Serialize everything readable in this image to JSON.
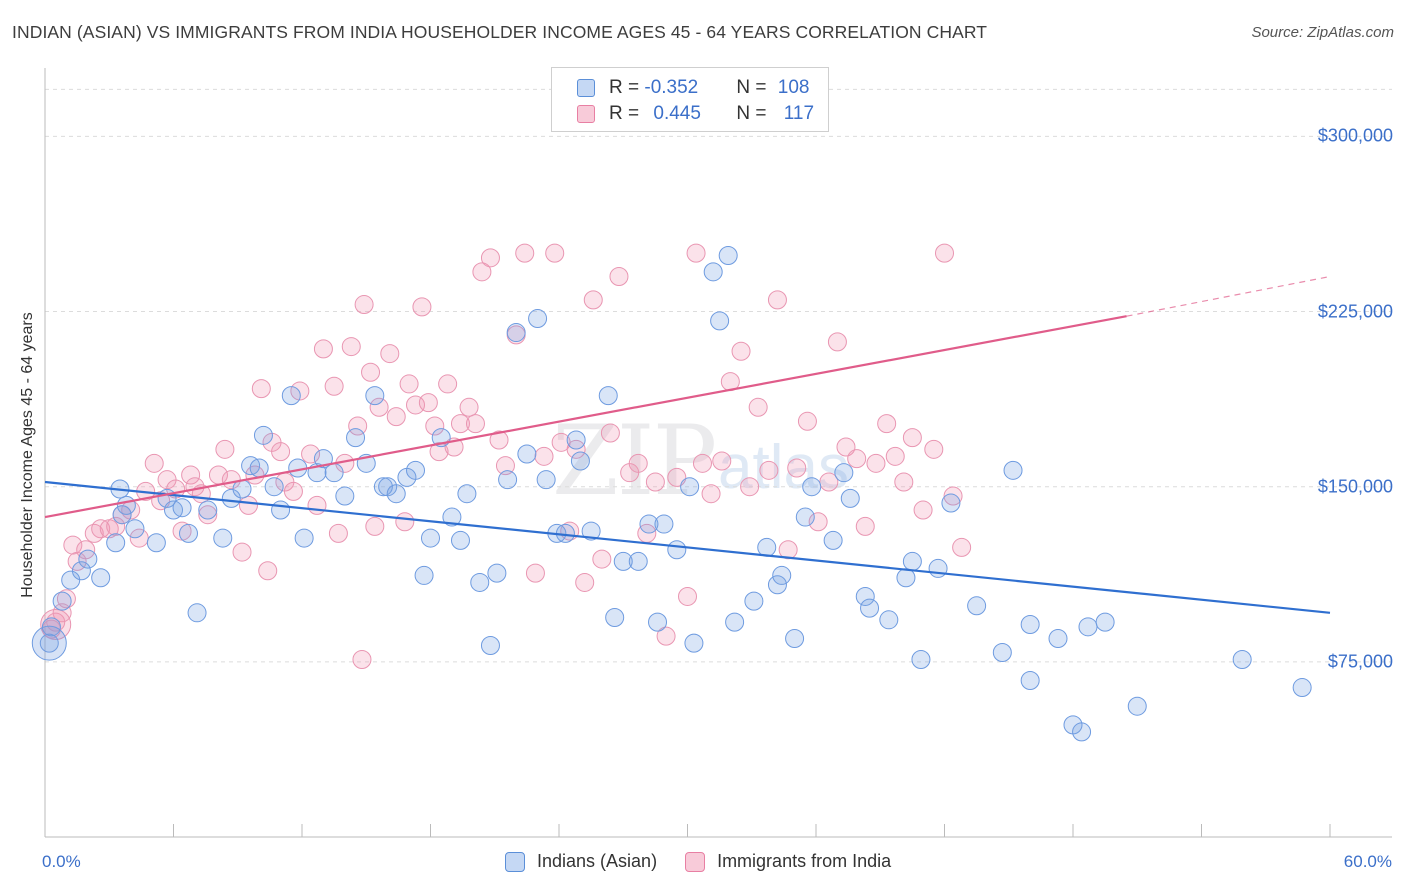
{
  "title": "INDIAN (ASIAN) VS IMMIGRANTS FROM INDIA HOUSEHOLDER INCOME AGES 45 - 64 YEARS CORRELATION CHART",
  "source": "Source: ZipAtlas.com",
  "watermark": {
    "zip": "ZIP",
    "atlas": "atlas"
  },
  "legend_top": {
    "rows": [
      {
        "r_label": "R = ",
        "r_value": "-0.352",
        "n_label": "N = ",
        "n_value": "108",
        "color": "#5b8fd8"
      },
      {
        "r_label": "R = ",
        "r_value": "0.445",
        "n_label": "N = ",
        "n_value": "117",
        "color": "#e87fa3"
      }
    ]
  },
  "legend_bottom": {
    "series1": "Indians (Asian)",
    "series2": "Immigrants from India"
  },
  "chart_data": {
    "type": "scatter",
    "title": "INDIAN (ASIAN) VS IMMIGRANTS FROM INDIA HOUSEHOLDER INCOME AGES 45 - 64 YEARS CORRELATION CHART",
    "xlabel": "",
    "ylabel": "Householder Income Ages 45 - 64 years",
    "xlim": [
      0,
      60
    ],
    "ylim": [
      0,
      325000
    ],
    "x_tick_labels": [
      "0.0%",
      "60.0%"
    ],
    "y_tick_labels": [
      "$75,000",
      "$150,000",
      "$225,000",
      "$300,000"
    ],
    "y_ticks": [
      75000,
      150000,
      225000,
      300000
    ],
    "grid": true,
    "legend_position": "top-center",
    "colors": {
      "blue": "#5b8fd8",
      "pink": "#e87fa3",
      "blue_line": "#2f6fd0",
      "pink_line": "#e05c8a"
    },
    "series": [
      {
        "name": "Indians (Asian)",
        "trend": {
          "x": [
            0,
            60
          ],
          "y": [
            152000,
            96000
          ]
        },
        "points": [
          [
            0.2,
            83000
          ],
          [
            0.3,
            90000
          ],
          [
            0.8,
            101000
          ],
          [
            1.2,
            110000
          ],
          [
            1.7,
            114000
          ],
          [
            2.0,
            119000
          ],
          [
            2.6,
            111000
          ],
          [
            3.3,
            126000
          ],
          [
            3.5,
            149000
          ],
          [
            3.6,
            138000
          ],
          [
            3.8,
            142000
          ],
          [
            4.2,
            132000
          ],
          [
            5.2,
            126000
          ],
          [
            5.7,
            145000
          ],
          [
            6.0,
            140000
          ],
          [
            6.4,
            141000
          ],
          [
            6.7,
            130000
          ],
          [
            7.1,
            96000
          ],
          [
            7.6,
            140000
          ],
          [
            8.3,
            128000
          ],
          [
            8.7,
            145000
          ],
          [
            9.2,
            149000
          ],
          [
            9.6,
            159000
          ],
          [
            10.0,
            158000
          ],
          [
            10.2,
            172000
          ],
          [
            10.7,
            150000
          ],
          [
            11.0,
            140000
          ],
          [
            11.5,
            189000
          ],
          [
            11.8,
            158000
          ],
          [
            12.1,
            128000
          ],
          [
            12.7,
            156000
          ],
          [
            13.0,
            162000
          ],
          [
            13.5,
            156000
          ],
          [
            14.0,
            146000
          ],
          [
            14.5,
            171000
          ],
          [
            15.0,
            160000
          ],
          [
            15.4,
            189000
          ],
          [
            15.8,
            150000
          ],
          [
            16.0,
            150000
          ],
          [
            16.4,
            147000
          ],
          [
            16.9,
            154000
          ],
          [
            17.3,
            157000
          ],
          [
            17.7,
            112000
          ],
          [
            18.0,
            128000
          ],
          [
            18.5,
            171000
          ],
          [
            19.0,
            137000
          ],
          [
            19.4,
            127000
          ],
          [
            19.7,
            147000
          ],
          [
            20.3,
            109000
          ],
          [
            20.8,
            82000
          ],
          [
            21.1,
            113000
          ],
          [
            21.6,
            153000
          ],
          [
            22.0,
            216000
          ],
          [
            22.5,
            164000
          ],
          [
            23.0,
            222000
          ],
          [
            23.4,
            153000
          ],
          [
            23.9,
            130000
          ],
          [
            24.3,
            130000
          ],
          [
            24.8,
            170000
          ],
          [
            25.0,
            161000
          ],
          [
            25.5,
            131000
          ],
          [
            26.3,
            189000
          ],
          [
            26.6,
            94000
          ],
          [
            27.0,
            118000
          ],
          [
            27.7,
            118000
          ],
          [
            28.2,
            134000
          ],
          [
            28.6,
            92000
          ],
          [
            28.9,
            134000
          ],
          [
            29.5,
            123000
          ],
          [
            30.1,
            150000
          ],
          [
            30.3,
            83000
          ],
          [
            31.2,
            242000
          ],
          [
            31.5,
            221000
          ],
          [
            31.9,
            249000
          ],
          [
            32.2,
            92000
          ],
          [
            33.1,
            101000
          ],
          [
            33.7,
            124000
          ],
          [
            34.2,
            108000
          ],
          [
            34.4,
            112000
          ],
          [
            35.0,
            85000
          ],
          [
            35.5,
            137000
          ],
          [
            35.8,
            150000
          ],
          [
            36.8,
            127000
          ],
          [
            37.3,
            156000
          ],
          [
            37.6,
            145000
          ],
          [
            38.3,
            103000
          ],
          [
            38.5,
            98000
          ],
          [
            39.4,
            93000
          ],
          [
            40.2,
            111000
          ],
          [
            40.5,
            118000
          ],
          [
            40.9,
            76000
          ],
          [
            41.7,
            115000
          ],
          [
            42.3,
            143000
          ],
          [
            43.5,
            99000
          ],
          [
            44.7,
            79000
          ],
          [
            45.2,
            157000
          ],
          [
            46.0,
            67000
          ],
          [
            46.0,
            91000
          ],
          [
            47.3,
            85000
          ],
          [
            48.0,
            48000
          ],
          [
            48.4,
            45000
          ],
          [
            48.7,
            90000
          ],
          [
            49.5,
            92000
          ],
          [
            51.0,
            56000
          ],
          [
            55.9,
            76000
          ],
          [
            58.7,
            64000
          ]
        ]
      },
      {
        "name": "Immigrants from India",
        "trend": {
          "x": [
            0,
            50.5
          ],
          "y": [
            137000,
            223000
          ],
          "dash_to": [
            60,
            240000
          ]
        },
        "points": [
          [
            0.3,
            89000
          ],
          [
            0.5,
            92000
          ],
          [
            0.8,
            96000
          ],
          [
            1.0,
            102000
          ],
          [
            1.3,
            125000
          ],
          [
            1.5,
            118000
          ],
          [
            1.9,
            123000
          ],
          [
            2.3,
            130000
          ],
          [
            2.6,
            132000
          ],
          [
            3.0,
            132000
          ],
          [
            3.3,
            133000
          ],
          [
            3.6,
            138000
          ],
          [
            4.0,
            140000
          ],
          [
            4.4,
            128000
          ],
          [
            4.7,
            148000
          ],
          [
            5.1,
            160000
          ],
          [
            5.4,
            144000
          ],
          [
            5.7,
            153000
          ],
          [
            6.1,
            149000
          ],
          [
            6.4,
            131000
          ],
          [
            6.8,
            155000
          ],
          [
            7.0,
            150000
          ],
          [
            7.3,
            147000
          ],
          [
            7.6,
            138000
          ],
          [
            8.1,
            155000
          ],
          [
            8.4,
            166000
          ],
          [
            8.7,
            153000
          ],
          [
            9.2,
            122000
          ],
          [
            9.5,
            142000
          ],
          [
            9.8,
            155000
          ],
          [
            10.1,
            192000
          ],
          [
            10.4,
            114000
          ],
          [
            10.6,
            169000
          ],
          [
            11.0,
            165000
          ],
          [
            11.2,
            152000
          ],
          [
            11.6,
            148000
          ],
          [
            11.9,
            191000
          ],
          [
            12.4,
            164000
          ],
          [
            12.7,
            142000
          ],
          [
            13.0,
            209000
          ],
          [
            13.5,
            193000
          ],
          [
            13.7,
            130000
          ],
          [
            14.0,
            160000
          ],
          [
            14.3,
            210000
          ],
          [
            14.6,
            176000
          ],
          [
            14.9,
            228000
          ],
          [
            15.2,
            199000
          ],
          [
            15.6,
            184000
          ],
          [
            16.1,
            207000
          ],
          [
            16.4,
            180000
          ],
          [
            16.8,
            135000
          ],
          [
            17.0,
            194000
          ],
          [
            17.3,
            185000
          ],
          [
            17.6,
            227000
          ],
          [
            17.9,
            186000
          ],
          [
            18.2,
            176000
          ],
          [
            18.4,
            165000
          ],
          [
            18.8,
            194000
          ],
          [
            19.1,
            167000
          ],
          [
            19.4,
            177000
          ],
          [
            19.8,
            184000
          ],
          [
            20.1,
            177000
          ],
          [
            20.4,
            242000
          ],
          [
            20.8,
            248000
          ],
          [
            21.2,
            170000
          ],
          [
            21.5,
            159000
          ],
          [
            22.0,
            215000
          ],
          [
            22.4,
            250000
          ],
          [
            22.9,
            113000
          ],
          [
            23.3,
            163000
          ],
          [
            23.8,
            250000
          ],
          [
            24.1,
            169000
          ],
          [
            24.5,
            131000
          ],
          [
            24.8,
            166000
          ],
          [
            25.2,
            109000
          ],
          [
            25.6,
            230000
          ],
          [
            26.0,
            119000
          ],
          [
            26.4,
            173000
          ],
          [
            26.8,
            240000
          ],
          [
            27.3,
            156000
          ],
          [
            27.7,
            160000
          ],
          [
            28.1,
            130000
          ],
          [
            28.5,
            152000
          ],
          [
            29.0,
            86000
          ],
          [
            29.5,
            154000
          ],
          [
            30.0,
            103000
          ],
          [
            30.4,
            250000
          ],
          [
            30.7,
            160000
          ],
          [
            31.1,
            147000
          ],
          [
            31.6,
            161000
          ],
          [
            32.0,
            195000
          ],
          [
            32.5,
            208000
          ],
          [
            32.9,
            150000
          ],
          [
            33.3,
            184000
          ],
          [
            33.8,
            157000
          ],
          [
            34.2,
            230000
          ],
          [
            34.7,
            123000
          ],
          [
            35.1,
            158000
          ],
          [
            35.6,
            178000
          ],
          [
            36.1,
            135000
          ],
          [
            36.6,
            152000
          ],
          [
            37.0,
            212000
          ],
          [
            37.4,
            167000
          ],
          [
            37.9,
            162000
          ],
          [
            38.3,
            133000
          ],
          [
            38.8,
            160000
          ],
          [
            39.3,
            177000
          ],
          [
            39.7,
            163000
          ],
          [
            40.1,
            152000
          ],
          [
            40.5,
            171000
          ],
          [
            41.0,
            140000
          ],
          [
            41.5,
            166000
          ],
          [
            42.0,
            250000
          ],
          [
            42.4,
            146000
          ],
          [
            42.8,
            124000
          ],
          [
            14.8,
            76000
          ],
          [
            15.4,
            133000
          ]
        ]
      }
    ]
  }
}
